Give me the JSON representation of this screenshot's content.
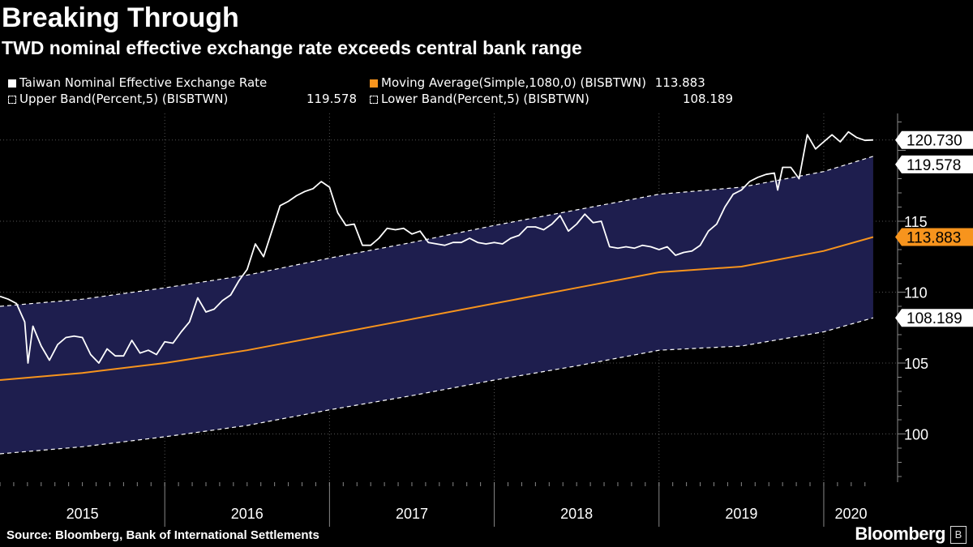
{
  "header": {
    "title": "Breaking Through",
    "subtitle": "TWD nominal effective exchange rate exceeds central bank range"
  },
  "legend": [
    {
      "label": "Taiwan Nominal Effective Exchange Rate",
      "value": "",
      "color": "#ffffff",
      "style": "solid"
    },
    {
      "label": "Moving Average(Simple,1080,0) (BISBTWN)",
      "value": "113.883",
      "color": "#f7941d",
      "style": "solid"
    },
    {
      "label": "Upper Band(Percent,5) (BISBTWN)",
      "value": "119.578",
      "color": "#ffffff",
      "style": "dashed"
    },
    {
      "label": "Lower Band(Percent,5) (BISBTWN)",
      "value": "108.189",
      "color": "#ffffff",
      "style": "dashed"
    }
  ],
  "footer": {
    "source": "Source: Bloomberg, Bank of International Settlements",
    "brand": "Bloomberg",
    "brand_icon": "B"
  },
  "colors": {
    "background": "#000000",
    "band_fill": "#1e1e4e",
    "rate": "#ffffff",
    "moving_average": "#f7941d",
    "gridline": "#555555"
  },
  "chart_data": {
    "type": "line",
    "title": "Breaking Through",
    "subtitle": "TWD nominal effective exchange rate exceeds central bank range",
    "x_ticks": [
      "2015",
      "2016",
      "2017",
      "2018",
      "2019",
      "2020"
    ],
    "y_ticks": [
      100,
      105,
      110,
      115
    ],
    "ylim": [
      96.6,
      122.6
    ],
    "xlim": [
      2015.0,
      2020.33
    ],
    "grid": true,
    "legend_position": "top",
    "end_labels": [
      {
        "series": "Taiwan Nominal Effective Exchange Rate",
        "value": "120.730"
      },
      {
        "series": "Upper Band(Percent,5) (BISBTWN)",
        "value": "119.578"
      },
      {
        "series": "Moving Average(Simple,1080,0) (BISBTWN)",
        "value": "113.883"
      },
      {
        "series": "Lower Band(Percent,5) (BISBTWN)",
        "value": "108.189"
      }
    ],
    "series": [
      {
        "name": "Taiwan Nominal Effective Exchange Rate",
        "x": [
          2015.0,
          2015.05,
          2015.1,
          2015.15,
          2015.17,
          2015.2,
          2015.25,
          2015.3,
          2015.35,
          2015.4,
          2015.45,
          2015.5,
          2015.55,
          2015.6,
          2015.65,
          2015.7,
          2015.75,
          2015.8,
          2015.85,
          2015.9,
          2015.95,
          2016.0,
          2016.05,
          2016.1,
          2016.15,
          2016.2,
          2016.25,
          2016.3,
          2016.35,
          2016.4,
          2016.45,
          2016.5,
          2016.55,
          2016.6,
          2016.65,
          2016.7,
          2016.75,
          2016.8,
          2016.85,
          2016.9,
          2016.95,
          2017.0,
          2017.05,
          2017.1,
          2017.15,
          2017.2,
          2017.25,
          2017.3,
          2017.35,
          2017.4,
          2017.45,
          2017.5,
          2017.55,
          2017.6,
          2017.65,
          2017.7,
          2017.75,
          2017.8,
          2017.85,
          2017.9,
          2017.95,
          2018.0,
          2018.05,
          2018.1,
          2018.15,
          2018.2,
          2018.25,
          2018.3,
          2018.35,
          2018.4,
          2018.45,
          2018.5,
          2018.55,
          2018.6,
          2018.65,
          2018.7,
          2018.75,
          2018.8,
          2018.85,
          2018.9,
          2018.95,
          2019.0,
          2019.05,
          2019.1,
          2019.15,
          2019.2,
          2019.25,
          2019.3,
          2019.35,
          2019.4,
          2019.45,
          2019.5,
          2019.55,
          2019.6,
          2019.65,
          2019.7,
          2019.72,
          2019.75,
          2019.8,
          2019.85,
          2019.9,
          2019.95,
          2020.0,
          2020.05,
          2020.1,
          2020.15,
          2020.2,
          2020.25,
          2020.3
        ],
        "y": [
          109.7,
          109.5,
          109.2,
          107.9,
          105.0,
          107.6,
          106.2,
          105.2,
          106.3,
          106.8,
          106.9,
          106.8,
          105.6,
          105.0,
          106.0,
          105.5,
          105.5,
          106.6,
          105.7,
          105.9,
          105.6,
          106.5,
          106.4,
          107.2,
          107.9,
          109.6,
          108.6,
          108.8,
          109.4,
          109.8,
          110.8,
          111.6,
          113.4,
          112.5,
          114.3,
          116.1,
          116.4,
          116.8,
          117.1,
          117.3,
          117.8,
          117.4,
          115.6,
          114.7,
          114.8,
          113.3,
          113.3,
          113.8,
          114.5,
          114.4,
          114.5,
          114.1,
          114.3,
          113.5,
          113.4,
          113.3,
          113.5,
          113.5,
          113.8,
          113.5,
          113.4,
          113.5,
          113.4,
          113.8,
          114.0,
          114.6,
          114.6,
          114.4,
          114.8,
          115.4,
          114.3,
          114.8,
          115.5,
          114.9,
          115.0,
          113.2,
          113.1,
          113.2,
          113.1,
          113.3,
          113.2,
          113.0,
          113.2,
          112.6,
          112.8,
          112.9,
          113.3,
          114.3,
          114.8,
          116.0,
          116.9,
          117.2,
          117.8,
          118.1,
          118.3,
          118.4,
          117.2,
          118.8,
          118.8,
          118.0,
          121.1,
          120.1,
          120.6,
          121.1,
          120.6,
          121.3,
          120.9,
          120.7,
          120.73
        ]
      },
      {
        "name": "Moving Average(Simple,1080,0) (BISBTWN)",
        "x": [
          2015.0,
          2015.5,
          2016.0,
          2016.5,
          2017.0,
          2017.5,
          2018.0,
          2018.5,
          2019.0,
          2019.5,
          2020.0,
          2020.3
        ],
        "y": [
          103.8,
          104.3,
          105.0,
          105.9,
          107.0,
          108.1,
          109.2,
          110.3,
          111.4,
          111.8,
          112.9,
          113.883
        ]
      },
      {
        "name": "Upper Band(Percent,5) (BISBTWN)",
        "x": [
          2015.0,
          2015.5,
          2016.0,
          2016.5,
          2017.0,
          2017.5,
          2018.0,
          2018.5,
          2019.0,
          2019.5,
          2020.0,
          2020.3
        ],
        "y": [
          109.0,
          109.5,
          110.3,
          111.2,
          112.4,
          113.5,
          114.7,
          115.8,
          116.9,
          117.4,
          118.5,
          119.578
        ]
      },
      {
        "name": "Lower Band(Percent,5) (BISBTWN)",
        "x": [
          2015.0,
          2015.5,
          2016.0,
          2016.5,
          2017.0,
          2017.5,
          2018.0,
          2018.5,
          2019.0,
          2019.5,
          2020.0,
          2020.3
        ],
        "y": [
          98.6,
          99.1,
          99.8,
          100.6,
          101.7,
          102.7,
          103.8,
          104.8,
          105.9,
          106.2,
          107.2,
          108.189
        ]
      }
    ]
  }
}
